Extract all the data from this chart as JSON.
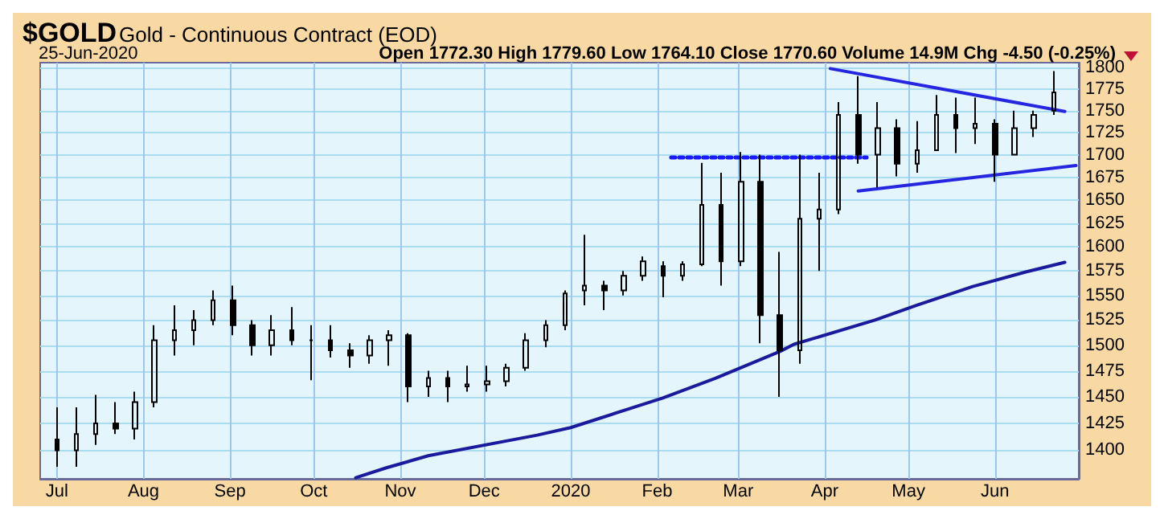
{
  "chart_data": {
    "type": "candlestick",
    "title": "$GOLD",
    "subtitle": "Gold - Continuous Contract (EOD)",
    "annotations": [
      "25-Jun-2020",
      "Open 1772.30 High 1779.60 Low 1764.10 Close 1770.60 Volume 14.9M Chg -4.50 (-0.25%)"
    ],
    "color": "#000000",
    "x": [
      "2019-07-01",
      "2019-07-08",
      "2019-07-15",
      "2019-07-22",
      "2019-07-29",
      "2019-08-05",
      "2019-08-12",
      "2019-08-19",
      "2019-08-26",
      "2019-09-02",
      "2019-09-09",
      "2019-09-16",
      "2019-09-23",
      "2019-09-30",
      "2019-10-07",
      "2019-10-14",
      "2019-10-21",
      "2019-10-28",
      "2019-11-04",
      "2019-11-11",
      "2019-11-18",
      "2019-11-25",
      "2019-12-02",
      "2019-12-09",
      "2019-12-16",
      "2019-12-23",
      "2019-12-30",
      "2020-01-06",
      "2020-01-13",
      "2020-01-20",
      "2020-01-27",
      "2020-02-03",
      "2020-02-10",
      "2020-02-17",
      "2020-02-24",
      "2020-03-02",
      "2020-03-09",
      "2020-03-16",
      "2020-03-23",
      "2020-03-30",
      "2020-04-06",
      "2020-04-13",
      "2020-04-20",
      "2020-04-27",
      "2020-05-04",
      "2020-05-11",
      "2020-05-18",
      "2020-05-25",
      "2020-06-01",
      "2020-06-08",
      "2020-06-15",
      "2020-06-22"
    ],
    "ohlc": [
      [
        1410,
        1440,
        1385,
        1400
      ],
      [
        1400,
        1440,
        1385,
        1415
      ],
      [
        1415,
        1452,
        1405,
        1425
      ],
      [
        1425,
        1445,
        1415,
        1420
      ],
      [
        1420,
        1455,
        1410,
        1445
      ],
      [
        1445,
        1520,
        1440,
        1505
      ],
      [
        1505,
        1540,
        1490,
        1515
      ],
      [
        1515,
        1535,
        1500,
        1525
      ],
      [
        1525,
        1555,
        1520,
        1545
      ],
      [
        1545,
        1560,
        1510,
        1520
      ],
      [
        1520,
        1525,
        1490,
        1500
      ],
      [
        1500,
        1530,
        1490,
        1515
      ],
      [
        1515,
        1538,
        1500,
        1505
      ],
      [
        1505,
        1520,
        1466,
        1505
      ],
      [
        1505,
        1520,
        1488,
        1495
      ],
      [
        1495,
        1502,
        1478,
        1490
      ],
      [
        1490,
        1510,
        1482,
        1505
      ],
      [
        1505,
        1515,
        1480,
        1510
      ],
      [
        1510,
        1512,
        1445,
        1460
      ],
      [
        1460,
        1475,
        1450,
        1468
      ],
      [
        1468,
        1475,
        1445,
        1460
      ],
      [
        1460,
        1480,
        1455,
        1462
      ],
      [
        1462,
        1480,
        1455,
        1465
      ],
      [
        1465,
        1482,
        1460,
        1478
      ],
      [
        1478,
        1512,
        1475,
        1505
      ],
      [
        1505,
        1525,
        1498,
        1520
      ],
      [
        1520,
        1555,
        1515,
        1552
      ],
      [
        1555,
        1613,
        1540,
        1560
      ],
      [
        1560,
        1565,
        1535,
        1555
      ],
      [
        1555,
        1575,
        1550,
        1570
      ],
      [
        1570,
        1590,
        1565,
        1585
      ],
      [
        1580,
        1585,
        1548,
        1570
      ],
      [
        1570,
        1585,
        1565,
        1582
      ],
      [
        1582,
        1691,
        1580,
        1645
      ],
      [
        1645,
        1680,
        1560,
        1585
      ],
      [
        1585,
        1703,
        1580,
        1670
      ],
      [
        1670,
        1700,
        1502,
        1530
      ],
      [
        1530,
        1595,
        1450,
        1495
      ],
      [
        1495,
        1700,
        1482,
        1630
      ],
      [
        1630,
        1680,
        1575,
        1640
      ],
      [
        1640,
        1760,
        1635,
        1745
      ],
      [
        1745,
        1790,
        1690,
        1700
      ],
      [
        1700,
        1760,
        1664,
        1730
      ],
      [
        1730,
        1740,
        1676,
        1690
      ],
      [
        1690,
        1738,
        1680,
        1705
      ],
      [
        1705,
        1768,
        1705,
        1745
      ],
      [
        1745,
        1765,
        1702,
        1730
      ],
      [
        1730,
        1765,
        1712,
        1735
      ],
      [
        1735,
        1740,
        1670,
        1700
      ],
      [
        1700,
        1750,
        1700,
        1730
      ],
      [
        1730,
        1750,
        1720,
        1745
      ],
      [
        1750,
        1796,
        1745,
        1771
      ]
    ],
    "series": [
      {
        "type": "line",
        "color": "#1a1a9c",
        "x": [
          "2019-10-16",
          "2019-10-27",
          "2019-11-11",
          "2019-12-20",
          "2020-01-01",
          "2020-02-03",
          "2020-02-22",
          "2020-03-16",
          "2020-03-21",
          "2020-04-19",
          "2020-05-04",
          "2020-05-24",
          "2020-06-12",
          "2020-06-26"
        ],
        "values": [
          1375,
          1384,
          1395,
          1414,
          1421,
          1449,
          1468,
          1494,
          1501,
          1525,
          1540,
          1559,
          1574,
          1584
        ]
      },
      {
        "type": "line",
        "color": "#2626e0",
        "x": [
          "2020-04-03",
          "2020-06-26"
        ],
        "values": [
          1799,
          1749
        ]
      },
      {
        "type": "line",
        "color": "#2626e0",
        "x": [
          "2020-04-13",
          "2020-06-30"
        ],
        "values": [
          1660,
          1688
        ]
      },
      {
        "type": "line",
        "color": "#1a1aff",
        "line_style": "dotted",
        "x": [
          "2020-02-06",
          "2020-04-16"
        ],
        "values": [
          1697,
          1697
        ]
      }
    ],
    "log": true,
    "grid": true,
    "marker": "none",
    "xlim": [
      "2019-06-25",
      "2020-07-01"
    ],
    "xticks": [
      {
        "value": "2019-07-01",
        "label": "Jul"
      },
      {
        "value": "2019-08-01",
        "label": "Aug"
      },
      {
        "value": "2019-09-01",
        "label": "Sep"
      },
      {
        "value": "2019-10-01",
        "label": "Oct"
      },
      {
        "value": "2019-11-01",
        "label": "Nov"
      },
      {
        "value": "2019-12-01",
        "label": "Dec"
      },
      {
        "value": "2020-01-01",
        "label": "2020"
      },
      {
        "value": "2020-02-01",
        "label": "Feb"
      },
      {
        "value": "2020-03-01",
        "label": "Mar"
      },
      {
        "value": "2020-04-01",
        "label": "Apr"
      },
      {
        "value": "2020-05-01",
        "label": "May"
      },
      {
        "value": "2020-06-01",
        "label": "Jun"
      }
    ],
    "ylim": [
      1374,
      1806
    ],
    "yticks": [
      1400,
      1425,
      1450,
      1475,
      1500,
      1525,
      1550,
      1575,
      1600,
      1625,
      1650,
      1675,
      1700,
      1725,
      1750,
      1775,
      1800
    ]
  }
}
